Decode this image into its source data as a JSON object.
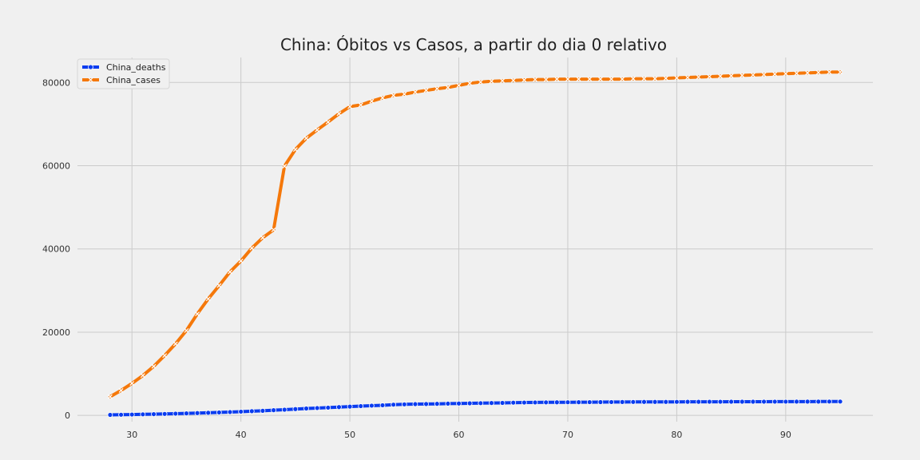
{
  "chart_data": {
    "type": "line",
    "title": "China: Óbitos vs Casos, a partir do dia 0 relativo",
    "xlabel": "",
    "ylabel": "",
    "xlim": [
      25,
      98
    ],
    "ylim": [
      -1500,
      86000
    ],
    "xticks": [
      30,
      40,
      50,
      60,
      70,
      80,
      90
    ],
    "yticks": [
      0,
      20000,
      40000,
      60000,
      80000
    ],
    "grid": true,
    "legend_position": "top-left",
    "x": [
      28,
      29,
      30,
      31,
      32,
      33,
      34,
      35,
      36,
      37,
      38,
      39,
      40,
      41,
      42,
      43,
      44,
      45,
      46,
      47,
      48,
      49,
      50,
      51,
      52,
      53,
      54,
      55,
      56,
      57,
      58,
      59,
      60,
      61,
      62,
      63,
      64,
      65,
      66,
      67,
      68,
      69,
      70,
      71,
      72,
      73,
      74,
      75,
      76,
      77,
      78,
      79,
      80,
      81,
      82,
      83,
      84,
      85,
      86,
      87,
      88,
      89,
      90,
      91,
      92,
      93,
      94,
      95
    ],
    "series": [
      {
        "name": "China_deaths",
        "color": "#0a3cf0",
        "marker": "circle",
        "values": [
          132,
          170,
          213,
          259,
          304,
          361,
          425,
          490,
          563,
          636,
          722,
          811,
          906,
          1016,
          1113,
          1259,
          1380,
          1523,
          1665,
          1770,
          1868,
          2004,
          2118,
          2236,
          2345,
          2442,
          2592,
          2663,
          2715,
          2744,
          2788,
          2835,
          2870,
          2912,
          2945,
          2981,
          3013,
          3070,
          3097,
          3119,
          3136,
          3158,
          3169,
          3176,
          3189,
          3199,
          3213,
          3226,
          3237,
          3245,
          3249,
          3253,
          3259,
          3274,
          3274,
          3281,
          3285,
          3291,
          3296,
          3299,
          3304,
          3308,
          3309,
          3316,
          3322,
          3326,
          3330,
          3331
        ]
      },
      {
        "name": "China_cases",
        "color": "#f5780a",
        "marker": "x",
        "values": [
          4500,
          6000,
          7700,
          9600,
          11800,
          14400,
          17200,
          20400,
          24400,
          28000,
          31200,
          34500,
          37100,
          40200,
          42700,
          44600,
          59900,
          63900,
          66600,
          68600,
          70500,
          72500,
          74200,
          74600,
          75500,
          76300,
          76900,
          77200,
          77700,
          78100,
          78500,
          78800,
          79300,
          79800,
          80100,
          80300,
          80400,
          80500,
          80600,
          80700,
          80700,
          80800,
          80800,
          80800,
          80800,
          80800,
          80800,
          80800,
          80900,
          80900,
          80900,
          81000,
          81100,
          81200,
          81300,
          81400,
          81500,
          81600,
          81700,
          81800,
          81900,
          82000,
          82100,
          82200,
          82300,
          82400,
          82500,
          82500
        ]
      }
    ]
  }
}
